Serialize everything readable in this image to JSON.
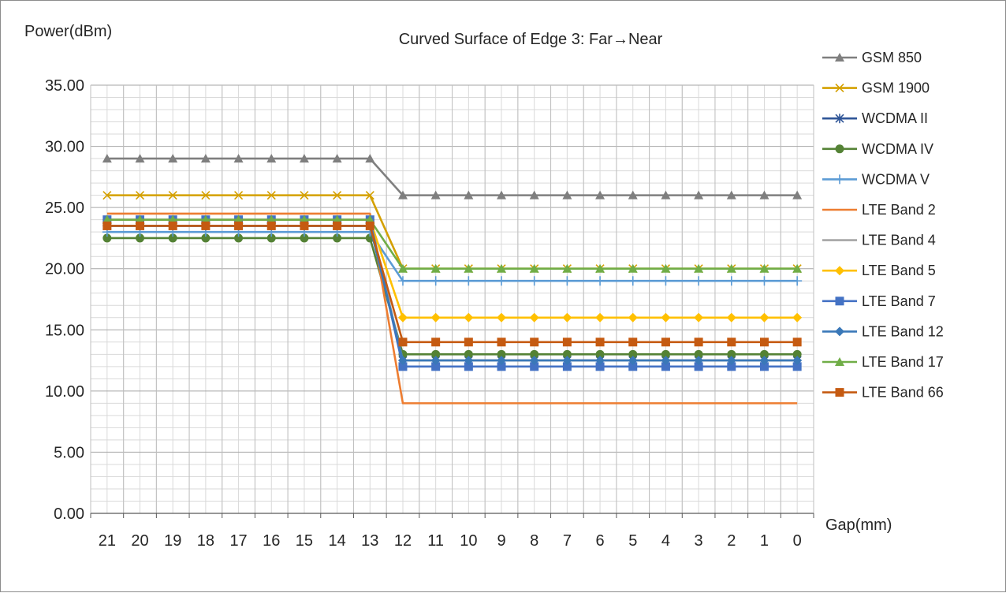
{
  "chart_data": {
    "type": "line",
    "title": "Curved Surface of Edge 3: Far→Near",
    "ylabel": "Power(dBm)",
    "xlabel": "Gap(mm)",
    "ylim": [
      0,
      35
    ],
    "yticks": [
      "0.00",
      "5.00",
      "10.00",
      "15.00",
      "20.00",
      "25.00",
      "30.00",
      "35.00"
    ],
    "categories": [
      "21",
      "20",
      "19",
      "18",
      "17",
      "16",
      "15",
      "14",
      "13",
      "12",
      "11",
      "10",
      "9",
      "8",
      "7",
      "6",
      "5",
      "4",
      "3",
      "2",
      "1",
      "0"
    ],
    "grid": true,
    "legend_position": "right",
    "series": [
      {
        "name": "GSM 850",
        "color": "#7f7f7f",
        "marker": "triangle",
        "values": [
          29,
          29,
          29,
          29,
          29,
          29,
          29,
          29,
          29,
          26,
          26,
          26,
          26,
          26,
          26,
          26,
          26,
          26,
          26,
          26,
          26,
          26
        ]
      },
      {
        "name": "GSM 1900",
        "color": "#d4a000",
        "marker": "x",
        "values": [
          26,
          26,
          26,
          26,
          26,
          26,
          26,
          26,
          26,
          20,
          20,
          20,
          20,
          20,
          20,
          20,
          20,
          20,
          20,
          20,
          20,
          20
        ]
      },
      {
        "name": "WCDMA II",
        "color": "#2f5597",
        "marker": "star",
        "values": [
          23.5,
          23.5,
          23.5,
          23.5,
          23.5,
          23.5,
          23.5,
          23.5,
          23.5,
          12.5,
          12.5,
          12.5,
          12.5,
          12.5,
          12.5,
          12.5,
          12.5,
          12.5,
          12.5,
          12.5,
          12.5,
          12.5
        ]
      },
      {
        "name": "WCDMA IV",
        "color": "#548235",
        "marker": "circle",
        "values": [
          22.5,
          22.5,
          22.5,
          22.5,
          22.5,
          22.5,
          22.5,
          22.5,
          22.5,
          13,
          13,
          13,
          13,
          13,
          13,
          13,
          13,
          13,
          13,
          13,
          13,
          13
        ]
      },
      {
        "name": "WCDMA V",
        "color": "#5b9bd5",
        "marker": "plus",
        "values": [
          23,
          23,
          23,
          23,
          23,
          23,
          23,
          23,
          23,
          19,
          19,
          19,
          19,
          19,
          19,
          19,
          19,
          19,
          19,
          19,
          19,
          19
        ]
      },
      {
        "name": "LTE Band 2",
        "color": "#ed7d31",
        "marker": "dash",
        "values": [
          24.5,
          24.5,
          24.5,
          24.5,
          24.5,
          24.5,
          24.5,
          24.5,
          24.5,
          9,
          9,
          9,
          9,
          9,
          9,
          9,
          9,
          9,
          9,
          9,
          9,
          9
        ]
      },
      {
        "name": "LTE Band 4",
        "color": "#a5a5a5",
        "marker": "dash",
        "values": [
          24,
          24,
          24,
          24,
          24,
          24,
          24,
          24,
          24,
          12.5,
          12.5,
          12.5,
          12.5,
          12.5,
          12.5,
          12.5,
          12.5,
          12.5,
          12.5,
          12.5,
          12.5,
          12.5
        ]
      },
      {
        "name": "LTE Band 5",
        "color": "#ffc000",
        "marker": "diamond",
        "values": [
          24,
          24,
          24,
          24,
          24,
          24,
          24,
          24,
          24,
          16,
          16,
          16,
          16,
          16,
          16,
          16,
          16,
          16,
          16,
          16,
          16,
          16
        ]
      },
      {
        "name": "LTE Band 7",
        "color": "#4472c4",
        "marker": "square",
        "values": [
          24,
          24,
          24,
          24,
          24,
          24,
          24,
          24,
          24,
          12,
          12,
          12,
          12,
          12,
          12,
          12,
          12,
          12,
          12,
          12,
          12,
          12
        ]
      },
      {
        "name": "LTE Band 12",
        "color": "#3a78b8",
        "marker": "diamond",
        "values": [
          23.5,
          23.5,
          23.5,
          23.5,
          23.5,
          23.5,
          23.5,
          23.5,
          23.5,
          12.5,
          12.5,
          12.5,
          12.5,
          12.5,
          12.5,
          12.5,
          12.5,
          12.5,
          12.5,
          12.5,
          12.5,
          12.5
        ]
      },
      {
        "name": "LTE Band 17",
        "color": "#70ad47",
        "marker": "triangle",
        "values": [
          24,
          24,
          24,
          24,
          24,
          24,
          24,
          24,
          24,
          20,
          20,
          20,
          20,
          20,
          20,
          20,
          20,
          20,
          20,
          20,
          20,
          20
        ]
      },
      {
        "name": "LTE Band 66",
        "color": "#c55a11",
        "marker": "square",
        "values": [
          23.5,
          23.5,
          23.5,
          23.5,
          23.5,
          23.5,
          23.5,
          23.5,
          23.5,
          14,
          14,
          14,
          14,
          14,
          14,
          14,
          14,
          14,
          14,
          14,
          14,
          14
        ]
      }
    ]
  }
}
